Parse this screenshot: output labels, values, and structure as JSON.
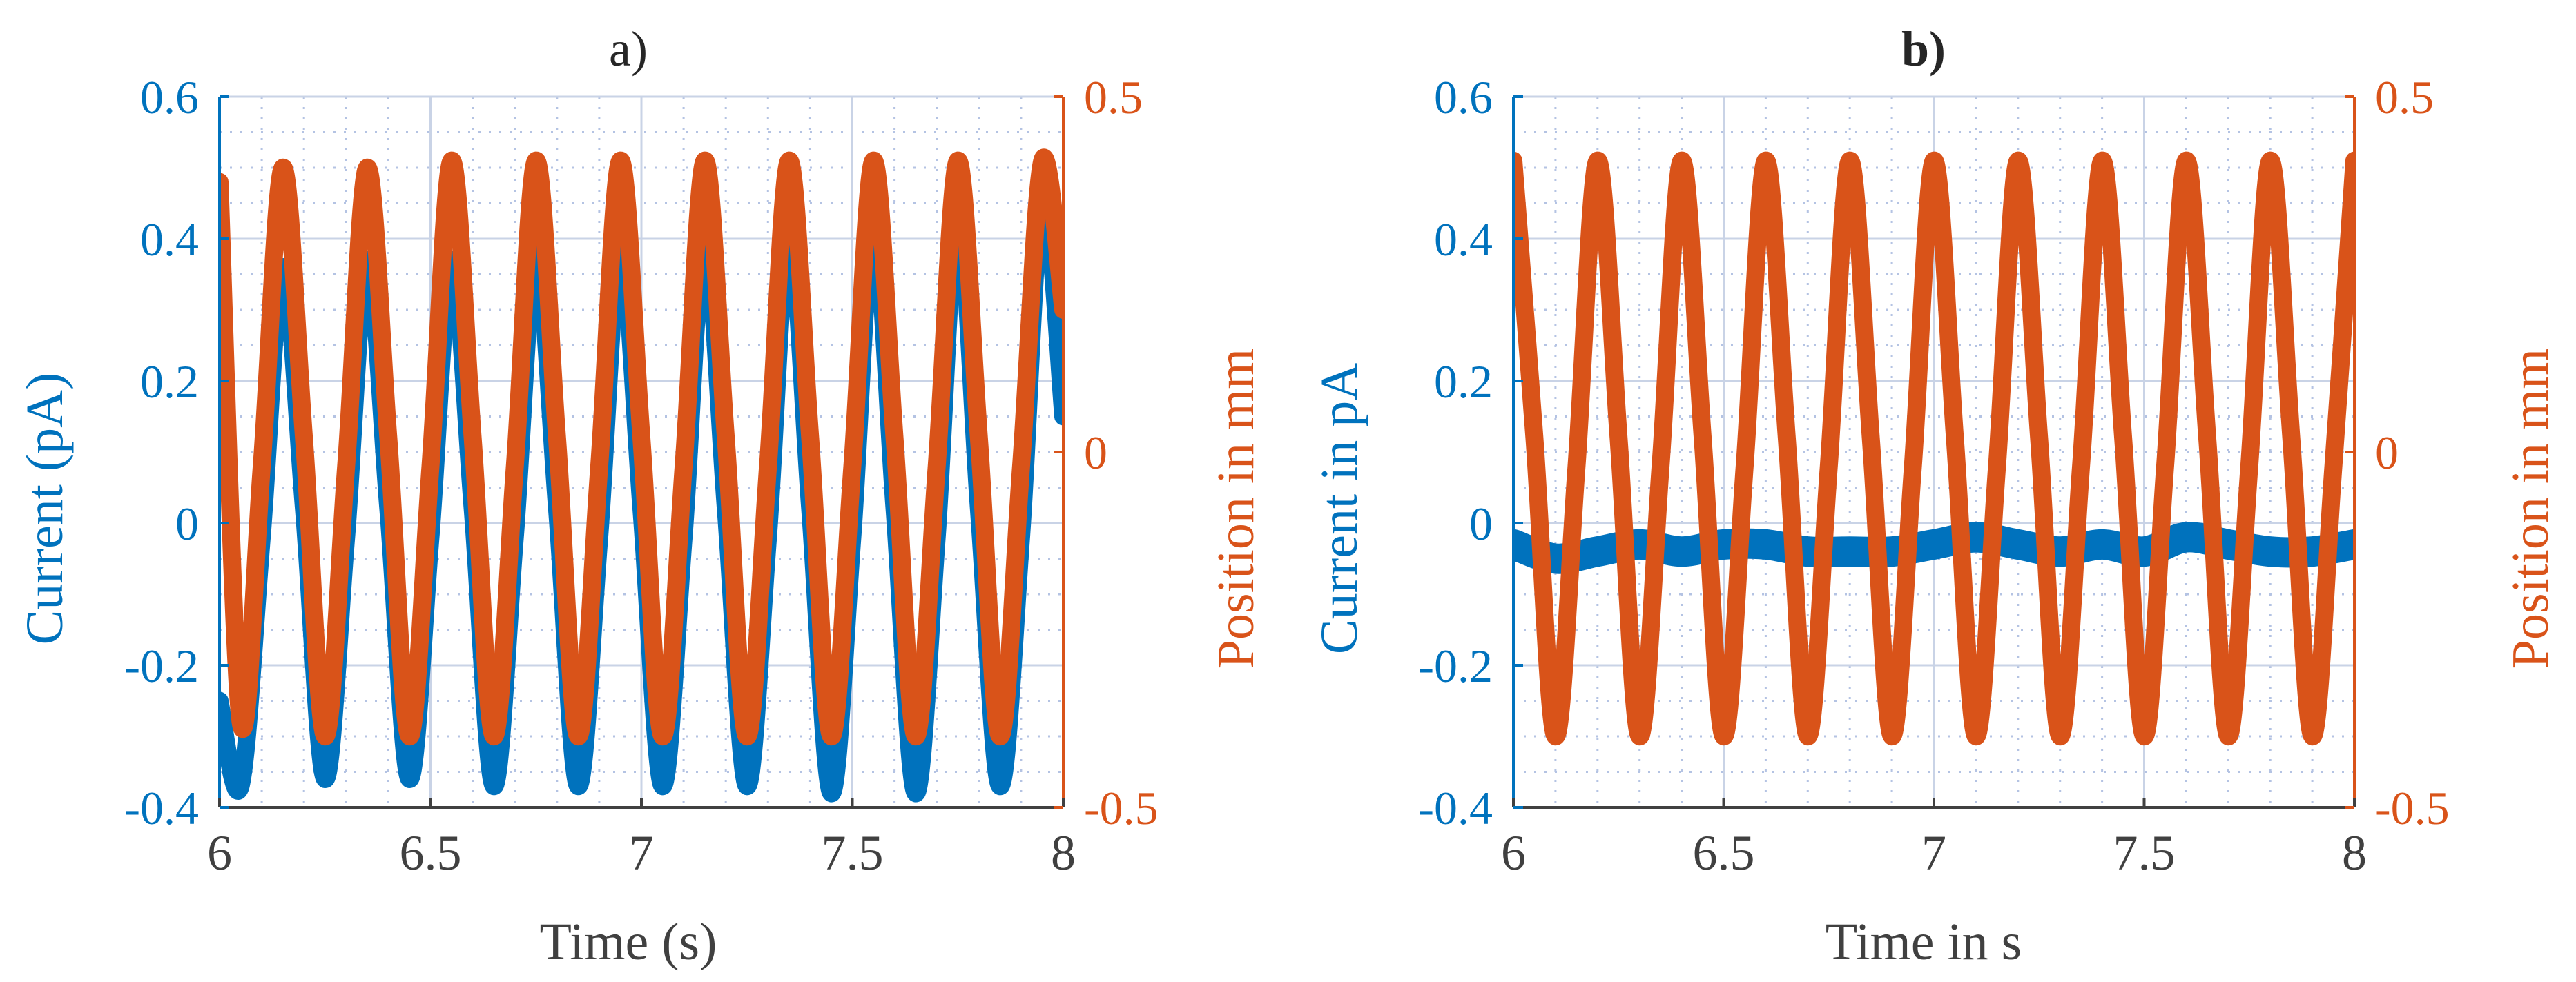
{
  "colors": {
    "current": "#0072BD",
    "position": "#D95319",
    "axis": "#404040",
    "grid": "#C9D3E6",
    "minor_grid": "#B4C3E3"
  },
  "chart_data": [
    {
      "type": "line",
      "title": "a)",
      "xlabel": "Time (s)",
      "ylabel_left": "Current (pA)",
      "ylabel_right": "Position in mm",
      "xlim": [
        6,
        8
      ],
      "ylim_left": [
        -0.4,
        0.6
      ],
      "ylim_right": [
        -0.5,
        0.5
      ],
      "xticks": [
        6,
        6.5,
        7,
        7.5,
        8
      ],
      "xtick_labels": [
        "6",
        "6.5",
        "7",
        "7.5",
        "8"
      ],
      "yticks_left": [
        -0.4,
        -0.2,
        0,
        0.2,
        0.4,
        0.6
      ],
      "ytick_labels_left": [
        "-0.4",
        "-0.2",
        "0",
        "0.2",
        "0.4",
        "0.6"
      ],
      "yticks_right": [
        -0.5,
        0,
        0.5
      ],
      "ytick_labels_right": [
        "-0.5",
        "0",
        "0.5"
      ],
      "grid": true,
      "series": [
        {
          "name": "Current",
          "axis": "left",
          "color": "#0072BD",
          "x": [
            6.0,
            6.05,
            6.1,
            6.15,
            6.2,
            6.25,
            6.3,
            6.35,
            6.4,
            6.45,
            6.5,
            6.55,
            6.6,
            6.65,
            6.7,
            6.75,
            6.8,
            6.85,
            6.9,
            6.95,
            7.0,
            7.05,
            7.1,
            7.15,
            7.2,
            7.25,
            7.3,
            7.35,
            7.4,
            7.45,
            7.5,
            7.55,
            7.6,
            7.65,
            7.7,
            7.75,
            7.8,
            7.85,
            7.9,
            7.95,
            8.0
          ],
          "y": [
            -0.25,
            -0.37,
            -0.02,
            0.36,
            0.02,
            -0.36,
            -0.02,
            0.37,
            0.02,
            -0.36,
            -0.02,
            0.37,
            0.02,
            -0.37,
            -0.02,
            0.38,
            0.02,
            -0.37,
            -0.02,
            0.39,
            0.02,
            -0.37,
            -0.02,
            0.4,
            0.02,
            -0.37,
            -0.02,
            0.41,
            0.02,
            -0.38,
            -0.02,
            0.42,
            0.02,
            -0.38,
            -0.02,
            0.44,
            0.02,
            -0.37,
            -0.02,
            0.46,
            0.15
          ]
        },
        {
          "name": "Position",
          "axis": "right",
          "color": "#D95319",
          "x": [
            6.0,
            6.05,
            6.1,
            6.15,
            6.2,
            6.25,
            6.3,
            6.35,
            6.4,
            6.45,
            6.5,
            6.55,
            6.6,
            6.65,
            6.7,
            6.75,
            6.8,
            6.85,
            6.9,
            6.95,
            7.0,
            7.05,
            7.1,
            7.15,
            7.2,
            7.25,
            7.3,
            7.35,
            7.4,
            7.45,
            7.5,
            7.55,
            7.6,
            7.65,
            7.7,
            7.75,
            7.8,
            7.85,
            7.9,
            7.95,
            8.0
          ],
          "y": [
            0.38,
            -0.38,
            -0.02,
            0.4,
            0.02,
            -0.4,
            -0.02,
            0.4,
            0.02,
            -0.4,
            -0.02,
            0.41,
            0.02,
            -0.4,
            -0.02,
            0.41,
            0.02,
            -0.4,
            -0.02,
            0.41,
            0.02,
            -0.4,
            -0.02,
            0.41,
            0.02,
            -0.4,
            -0.02,
            0.41,
            0.02,
            -0.4,
            -0.02,
            0.41,
            0.02,
            -0.4,
            -0.02,
            0.41,
            0.02,
            -0.4,
            -0.02,
            0.41,
            0.2
          ]
        }
      ]
    },
    {
      "type": "line",
      "title": "b)",
      "xlabel": "Time in s",
      "ylabel_left": "Current in pA",
      "ylabel_right": "Position in mm",
      "xlim": [
        6,
        8
      ],
      "ylim_left": [
        -0.4,
        0.6
      ],
      "ylim_right": [
        -0.5,
        0.5
      ],
      "xticks": [
        6,
        6.5,
        7,
        7.5,
        8
      ],
      "xtick_labels": [
        "6",
        "6.5",
        "7",
        "7.5",
        "8"
      ],
      "yticks_left": [
        -0.4,
        -0.2,
        0,
        0.2,
        0.4,
        0.6
      ],
      "ytick_labels_left": [
        "-0.4",
        "-0.2",
        "0",
        "0.2",
        "0.4",
        "0.6"
      ],
      "yticks_right": [
        -0.5,
        0,
        0.5
      ],
      "ytick_labels_right": [
        "-0.5",
        "0",
        "0.5"
      ],
      "grid": true,
      "series": [
        {
          "name": "Current",
          "axis": "left",
          "color": "#0072BD",
          "x": [
            6.0,
            6.1,
            6.2,
            6.3,
            6.4,
            6.5,
            6.6,
            6.7,
            6.8,
            6.9,
            7.0,
            7.1,
            7.2,
            7.3,
            7.4,
            7.5,
            7.6,
            7.7,
            7.8,
            7.9,
            8.0
          ],
          "y": [
            -0.03,
            -0.05,
            -0.04,
            -0.03,
            -0.04,
            -0.03,
            -0.03,
            -0.04,
            -0.04,
            -0.04,
            -0.03,
            -0.02,
            -0.03,
            -0.04,
            -0.03,
            -0.04,
            -0.02,
            -0.03,
            -0.04,
            -0.04,
            -0.03
          ]
        },
        {
          "name": "Position",
          "axis": "right",
          "color": "#D95319",
          "x": [
            6.0,
            6.05,
            6.1,
            6.15,
            6.2,
            6.25,
            6.3,
            6.35,
            6.4,
            6.45,
            6.5,
            6.55,
            6.6,
            6.65,
            6.7,
            6.75,
            6.8,
            6.85,
            6.9,
            6.95,
            7.0,
            7.05,
            7.1,
            7.15,
            7.2,
            7.25,
            7.3,
            7.35,
            7.4,
            7.45,
            7.5,
            7.55,
            7.6,
            7.65,
            7.7,
            7.75,
            7.8,
            7.85,
            7.9,
            7.95,
            8.0
          ],
          "y": [
            0.41,
            0.02,
            -0.4,
            -0.02,
            0.41,
            0.02,
            -0.4,
            -0.02,
            0.41,
            0.02,
            -0.4,
            -0.02,
            0.41,
            0.02,
            -0.4,
            -0.02,
            0.41,
            0.02,
            -0.4,
            -0.02,
            0.41,
            0.02,
            -0.4,
            -0.02,
            0.41,
            0.02,
            -0.4,
            -0.02,
            0.41,
            0.02,
            -0.4,
            -0.02,
            0.41,
            0.02,
            -0.4,
            -0.02,
            0.41,
            0.02,
            -0.4,
            -0.02,
            0.41
          ]
        }
      ]
    }
  ]
}
